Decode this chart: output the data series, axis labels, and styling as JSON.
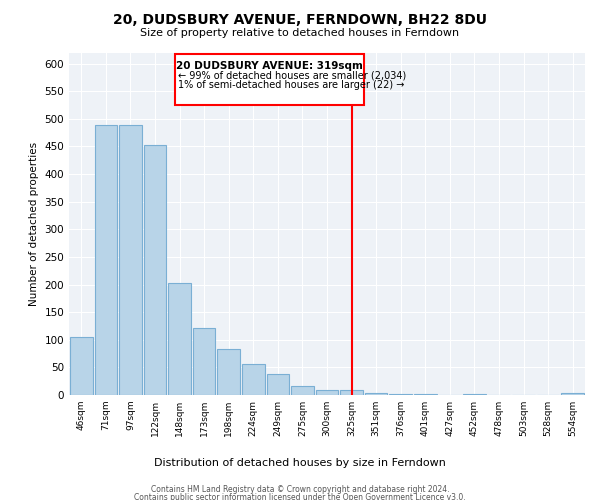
{
  "title": "20, DUDSBURY AVENUE, FERNDOWN, BH22 8DU",
  "subtitle": "Size of property relative to detached houses in Ferndown",
  "xlabel": "Distribution of detached houses by size in Ferndown",
  "ylabel": "Number of detached properties",
  "bar_labels": [
    "46sqm",
    "71sqm",
    "97sqm",
    "122sqm",
    "148sqm",
    "173sqm",
    "198sqm",
    "224sqm",
    "249sqm",
    "275sqm",
    "300sqm",
    "325sqm",
    "351sqm",
    "376sqm",
    "401sqm",
    "427sqm",
    "452sqm",
    "478sqm",
    "503sqm",
    "528sqm",
    "554sqm"
  ],
  "bar_values": [
    105,
    488,
    488,
    453,
    202,
    121,
    83,
    57,
    38,
    16,
    9,
    9,
    3,
    1,
    2,
    0,
    1,
    0,
    0,
    0,
    4
  ],
  "bar_color": "#b8d4e8",
  "bar_edge_color": "#7aafd4",
  "vline_color": "red",
  "annotation_title": "20 DUDSBURY AVENUE: 319sqm",
  "annotation_line1": "← 99% of detached houses are smaller (2,034)",
  "annotation_line2": "1% of semi-detached houses are larger (22) →",
  "ylim": [
    0,
    620
  ],
  "yticks": [
    0,
    50,
    100,
    150,
    200,
    250,
    300,
    350,
    400,
    450,
    500,
    550,
    600
  ],
  "footer_line1": "Contains HM Land Registry data © Crown copyright and database right 2024.",
  "footer_line2": "Contains public sector information licensed under the Open Government Licence v3.0.",
  "bg_color": "#ffffff",
  "plot_bg_color": "#eef2f7",
  "grid_color": "#ffffff"
}
